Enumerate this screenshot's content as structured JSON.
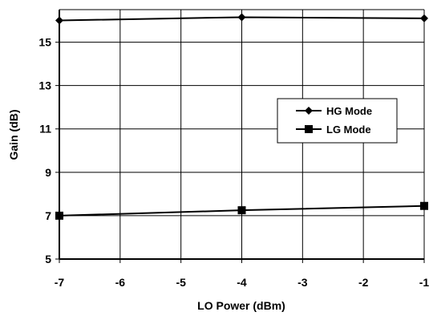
{
  "chart_data": {
    "type": "line",
    "title": "",
    "xlabel": "LO Power (dBm)",
    "ylabel": "Gain (dB)",
    "xlim": [
      -7,
      -1
    ],
    "ylim": [
      5,
      16.5
    ],
    "x_ticks": [
      -7,
      -6,
      -5,
      -4,
      -3,
      -2,
      -1
    ],
    "y_ticks": [
      5,
      7,
      9,
      11,
      13,
      15
    ],
    "grid": true,
    "legend_position": "right-center",
    "series": [
      {
        "name": "HG Mode",
        "marker": "diamond",
        "x": [
          -7,
          -4,
          -1
        ],
        "values": [
          16.0,
          16.15,
          16.1
        ]
      },
      {
        "name": "LG Mode",
        "marker": "square",
        "x": [
          -7,
          -4,
          -1
        ],
        "values": [
          7.0,
          7.25,
          7.45
        ]
      }
    ]
  }
}
